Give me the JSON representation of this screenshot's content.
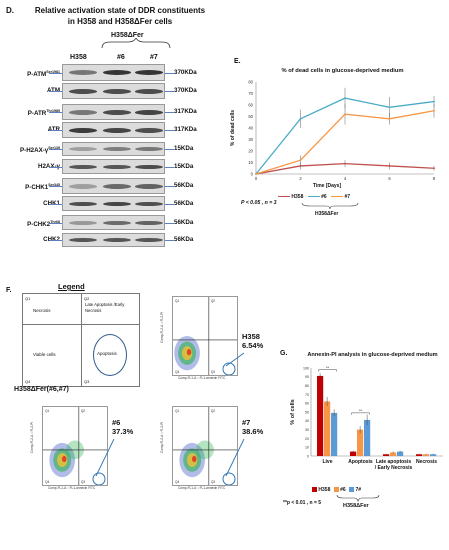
{
  "panelD": {
    "letter": "D.",
    "title_line1": "Relative activation state of DDR constituents",
    "title_line2": "in H358 and H358ΔFer cells",
    "header_group": "H358ΔFer",
    "lanes": [
      "H358",
      "#6",
      "#7"
    ],
    "rows": [
      {
        "label": "P-ATM",
        "sup": "Ser1981",
        "kda": "370KDa"
      },
      {
        "label": "ATM",
        "sup": "",
        "kda": "370KDa"
      },
      {
        "label": "P-ATR",
        "sup": "Thr1989",
        "kda": "317KDa"
      },
      {
        "label": "ATR",
        "sup": "",
        "kda": "317KDa"
      },
      {
        "label": "P-H2AX-γ",
        "sup": "Ser139",
        "kda": "15KDa"
      },
      {
        "label": "H2AX-γ",
        "sup": "",
        "kda": "15KDa"
      },
      {
        "label": "P-CHK1",
        "sup": "Ser345",
        "kda": "56KDa"
      },
      {
        "label": "CHK1",
        "sup": "",
        "kda": "56KDa"
      },
      {
        "label": "P-CHK2",
        "sup": "Thr68",
        "kda": "56KDa"
      },
      {
        "label": "CHK2",
        "sup": "",
        "kda": "56KDa"
      }
    ]
  },
  "panelE": {
    "letter": "E.",
    "legend_prefix": "H358",
    "legend_group": "H358ΔFer",
    "stat": "P < 0.05 , n = 3",
    "colors": {
      "H358": "#c0504d",
      "#6": "#4bacc6",
      "#7": "#f79646"
    }
  },
  "panelF": {
    "letter": "F.",
    "legend_title": "Legend",
    "q1": "Q1",
    "q2": "Q2",
    "q3": "Q3",
    "q4": "Q4",
    "necrosis": "Necrosis",
    "late_apoptosis": "Late Apoptosis /Early Necrosis",
    "viable": "Viable cells",
    "apoptosis": "Apoptosis",
    "group_label": "H358ΔFer(#6,#7)",
    "plots": [
      {
        "id": "H358",
        "label": "H358",
        "pct": "6.54%"
      },
      {
        "id": "#6",
        "label": "#6",
        "pct": "37.3%"
      },
      {
        "id": "#7",
        "label": "#7",
        "pct": "38.6%"
      }
    ],
    "xaxis": "Comp-FL1-A :: FL1-annexin FITC",
    "yaxis": "Comp-FL2-A :: FL2-PI"
  },
  "panelG": {
    "letter": "G.",
    "stat": "**p < 0.01 , n = 5",
    "group_label": "H358ΔFer",
    "sig": "**",
    "legend_h358": "H358",
    "legend_6": "#6",
    "legend_7": "7#",
    "colors": {
      "H358": "#c00000",
      "#6": "#f79646",
      "#7": "#5b9bd5"
    }
  },
  "chart_data": [
    {
      "type": "line",
      "title": "% of dead cells in glucose-deprived medium",
      "xlabel": "Time [Days]",
      "ylabel": "% of dead cells",
      "x": [
        0,
        2,
        4,
        6,
        8
      ],
      "ylim": [
        0,
        80
      ],
      "yticks": [
        0,
        10,
        20,
        30,
        40,
        50,
        60,
        70,
        80
      ],
      "series": [
        {
          "name": "H358",
          "values": [
            0,
            7,
            9,
            7,
            5
          ]
        },
        {
          "name": "#6",
          "values": [
            0,
            48,
            66,
            58,
            63
          ]
        },
        {
          "name": "#7",
          "values": [
            0,
            12,
            52,
            48,
            55
          ]
        }
      ]
    },
    {
      "type": "bar",
      "title": "Annexin-PI analysis in glucose-deprived medium",
      "ylabel": "% of cells",
      "categories": [
        "Live",
        "Apoptosis",
        "Late apoptosis / Early Necrosis",
        "Necrosis"
      ],
      "ylim": [
        0,
        100
      ],
      "yticks": [
        0,
        10,
        20,
        30,
        40,
        50,
        60,
        70,
        80,
        90,
        100
      ],
      "series": [
        {
          "name": "H358",
          "values": [
            91,
            5,
            2,
            2
          ]
        },
        {
          "name": "#6",
          "values": [
            62,
            30,
            4,
            2
          ]
        },
        {
          "name": "7#",
          "values": [
            49,
            41,
            5,
            2
          ]
        }
      ]
    }
  ]
}
